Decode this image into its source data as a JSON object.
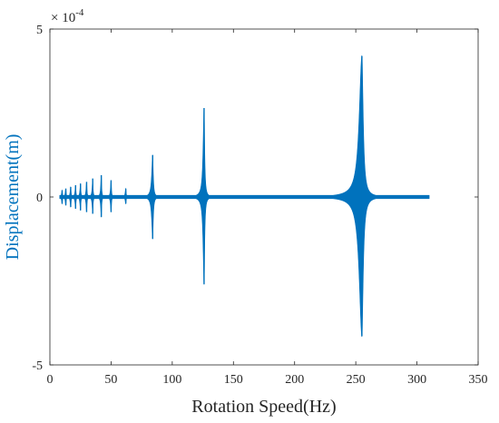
{
  "chart_data": {
    "type": "line",
    "xlabel": "Rotation Speed(Hz)",
    "ylabel": "Displacement(m)",
    "xlim": [
      0,
      350
    ],
    "ylim": [
      -5,
      5
    ],
    "x_ticks": [
      "0",
      "50",
      "100",
      "150",
      "200",
      "250",
      "300",
      "350"
    ],
    "y_ticks": [
      "5",
      "0",
      "-5"
    ],
    "y_exponent_label": "× 10",
    "y_exponent_power": "-4",
    "grid": false,
    "series": [
      {
        "color": "#0072BD",
        "x_range": [
          8,
          310
        ],
        "baseline_amplitude": 0.05,
        "peaks": [
          {
            "x": 10,
            "ymax": 0.2,
            "ymin": -0.2
          },
          {
            "x": 13,
            "ymax": 0.25,
            "ymin": -0.25
          },
          {
            "x": 17,
            "ymax": 0.3,
            "ymin": -0.3
          },
          {
            "x": 21,
            "ymax": 0.35,
            "ymin": -0.35
          },
          {
            "x": 25,
            "ymax": 0.4,
            "ymin": -0.4
          },
          {
            "x": 30,
            "ymax": 0.45,
            "ymin": -0.45
          },
          {
            "x": 35,
            "ymax": 0.55,
            "ymin": -0.5
          },
          {
            "x": 42,
            "ymax": 0.65,
            "ymin": -0.6
          },
          {
            "x": 50,
            "ymax": 0.5,
            "ymin": -0.45
          },
          {
            "x": 62,
            "ymax": 0.25,
            "ymin": -0.2
          },
          {
            "x": 84,
            "ymax": 1.25,
            "ymin": -1.25
          },
          {
            "x": 126,
            "ymax": 2.65,
            "ymin": -2.6
          },
          {
            "x": 255,
            "ymax": 4.2,
            "ymin": -4.15
          }
        ]
      }
    ]
  },
  "colors": {
    "series": "#0072BD",
    "axis": "#262626",
    "ylabel": "#0072BD"
  }
}
